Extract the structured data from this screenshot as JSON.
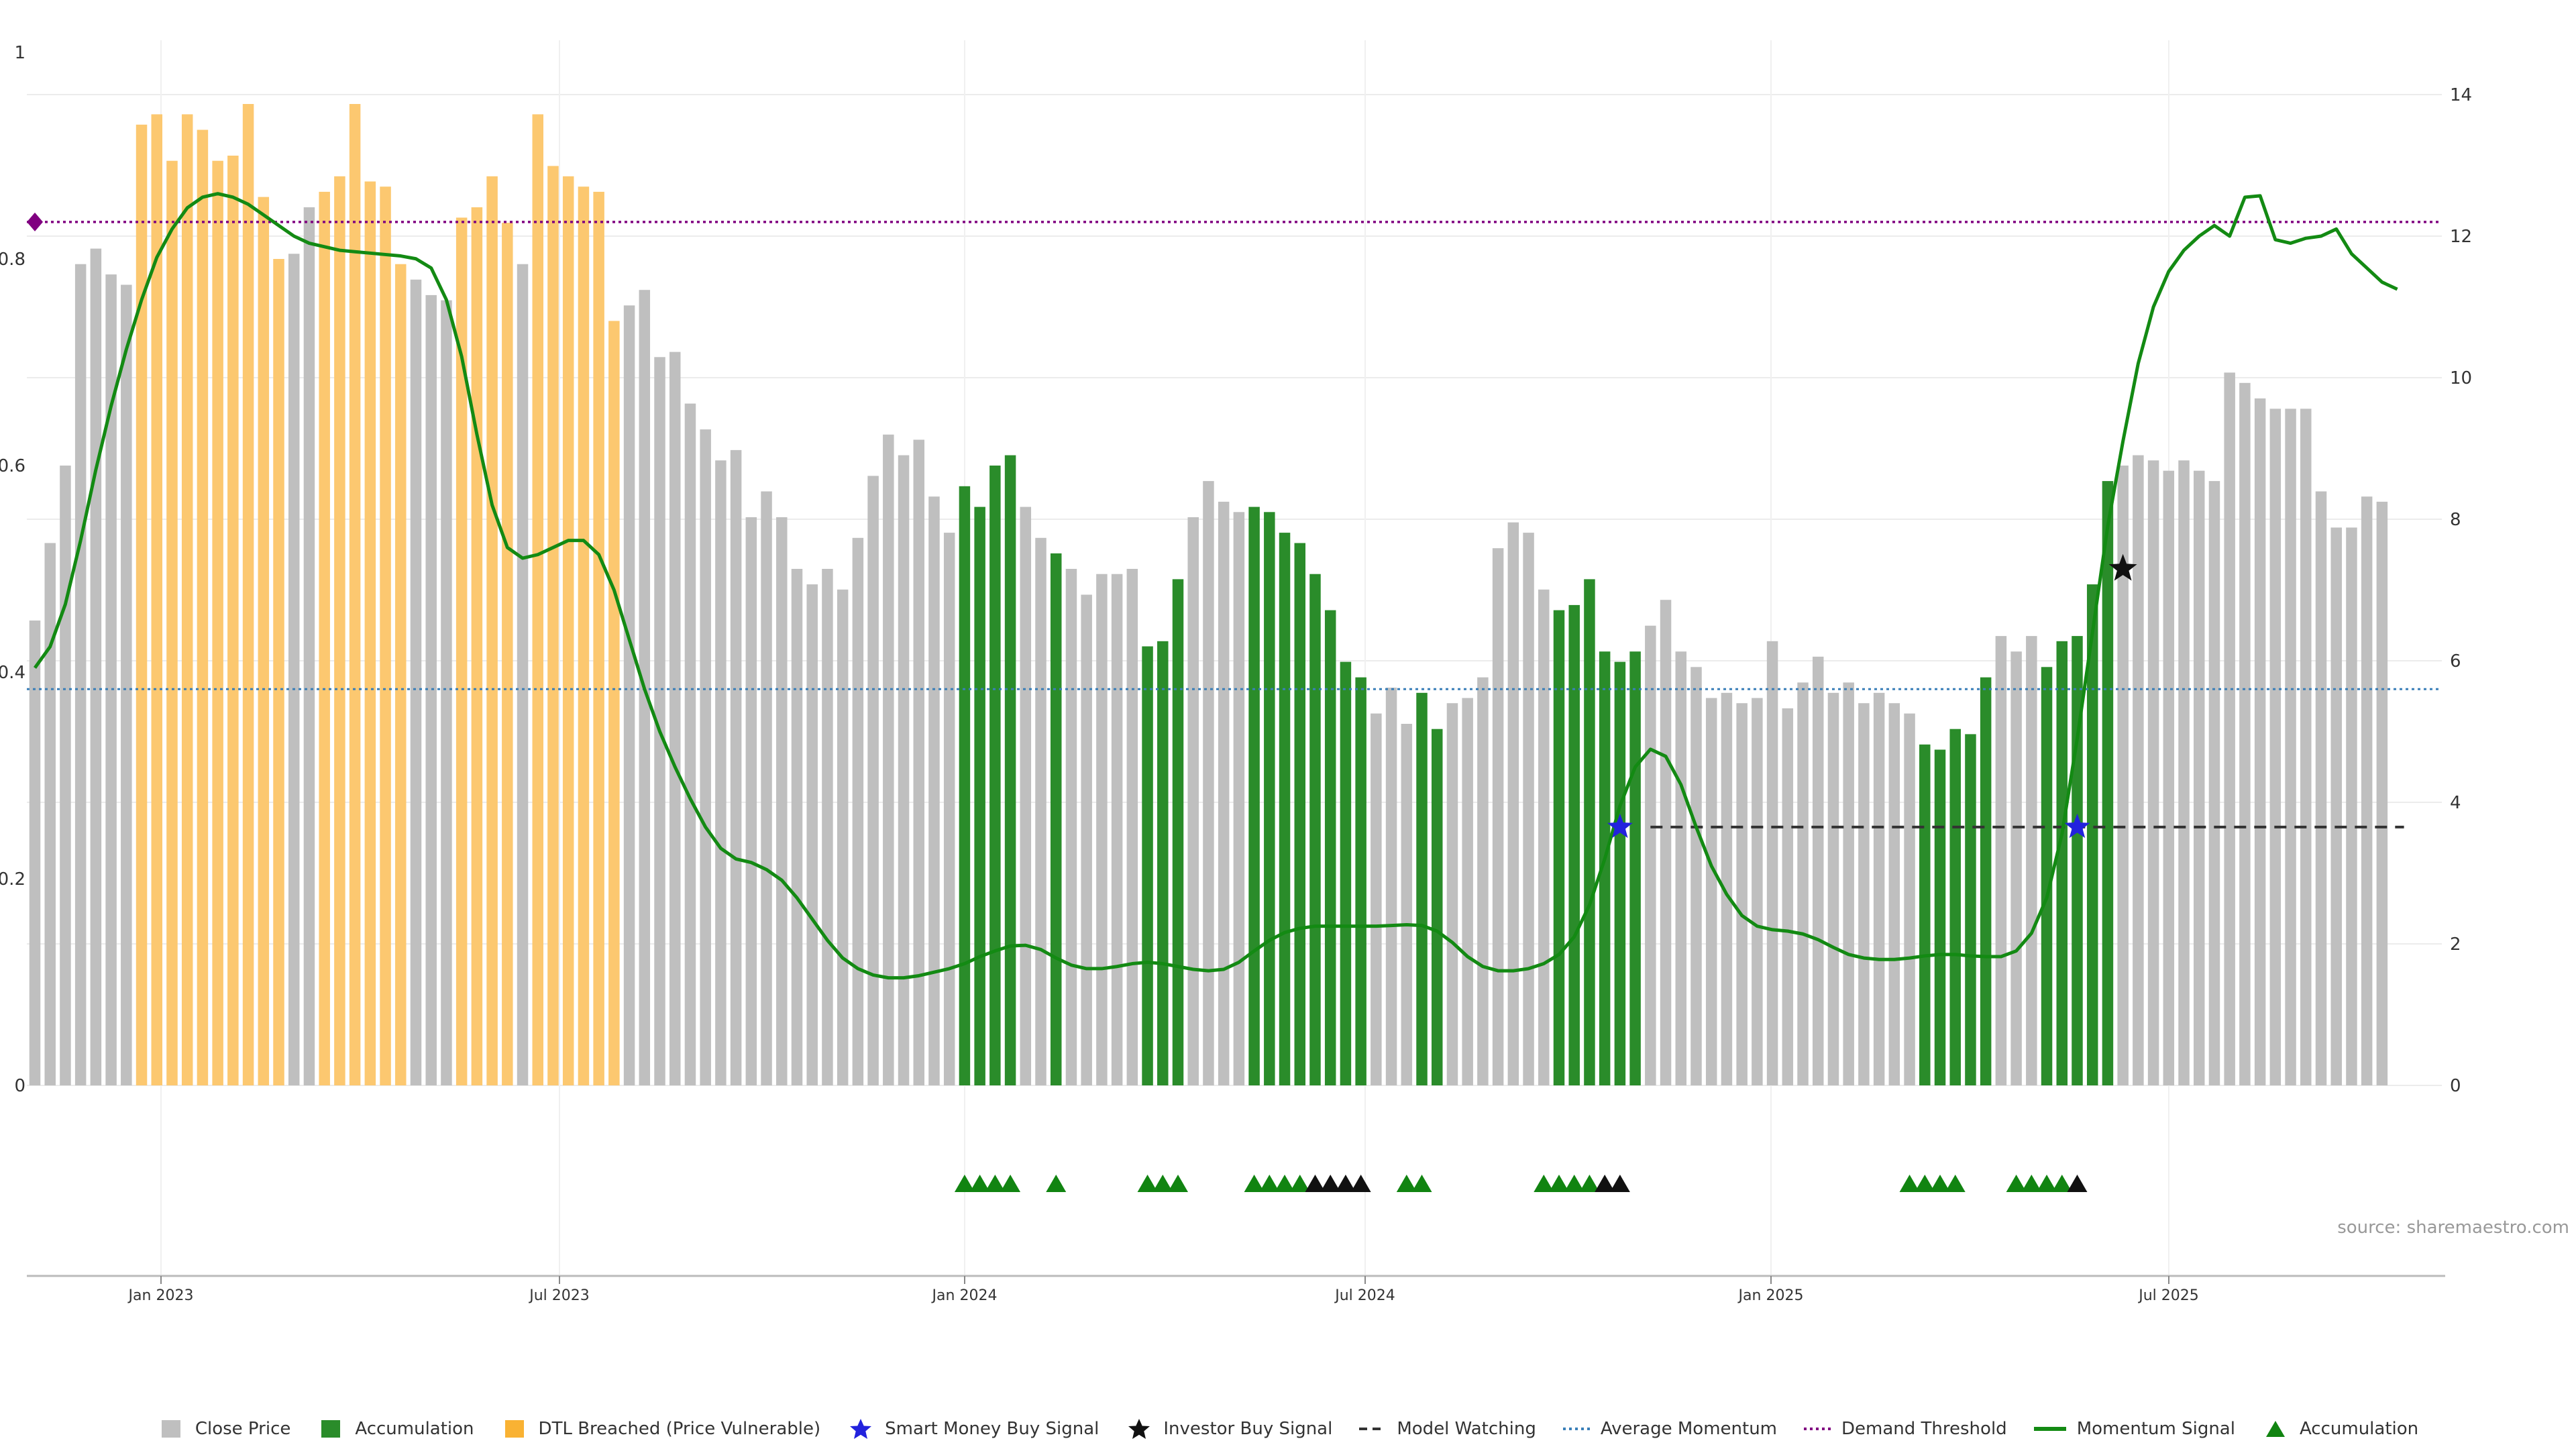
{
  "colors": {
    "close": "#bfbfbf",
    "accum": "#2a8c2a",
    "dtl": "#fcc870",
    "smart": "#2222dd",
    "investor": "#111111",
    "watching": "#333333",
    "avg": "#3a7fb8",
    "demand": "#800080",
    "momentum": "#138a13",
    "triangle": "#118411"
  },
  "chart_data": {
    "type": "bar",
    "x_ticks": [
      "Jan 2023",
      "Jul 2023",
      "Jan 2024",
      "Jul 2024",
      "Jan 2025",
      "Jul 2025"
    ],
    "y_left_ticks": [
      "0",
      "0.2",
      "0.4",
      "0.6",
      "0.8",
      "1"
    ],
    "y_right_ticks": [
      "0",
      "2",
      "4",
      "6",
      "8",
      "10",
      "12",
      "14"
    ],
    "y_left_range": [
      0,
      1
    ],
    "y_right_range": [
      0,
      14.6
    ],
    "source": "source: sharemaestro.com",
    "close_prices": [
      0.45,
      0.525,
      0.6,
      0.795,
      0.81,
      0.785,
      0.775,
      0.93,
      0.94,
      0.895,
      0.94,
      0.925,
      0.895,
      0.9,
      0.95,
      0.86,
      0.8,
      0.805,
      0.85,
      0.865,
      0.88,
      0.95,
      0.875,
      0.87,
      0.795,
      0.78,
      0.765,
      0.76,
      0.84,
      0.85,
      0.88,
      0.835,
      0.795,
      0.94,
      0.89,
      0.88,
      0.87,
      0.865,
      0.74,
      0.755,
      0.77,
      0.705,
      0.71,
      0.66,
      0.635,
      0.605,
      0.615,
      0.55,
      0.575,
      0.55,
      0.5,
      0.485,
      0.5,
      0.48,
      0.53,
      0.59,
      0.63,
      0.61,
      0.625,
      0.57,
      0.535,
      0.58,
      0.56,
      0.6,
      0.61,
      0.56,
      0.53,
      0.515,
      0.5,
      0.475,
      0.495,
      0.495,
      0.5,
      0.425,
      0.43,
      0.49,
      0.55,
      0.585,
      0.565,
      0.555,
      0.56,
      0.555,
      0.535,
      0.525,
      0.495,
      0.46,
      0.41,
      0.395,
      0.36,
      0.385,
      0.35,
      0.38,
      0.345,
      0.37,
      0.375,
      0.395,
      0.52,
      0.545,
      0.535,
      0.48,
      0.46,
      0.465,
      0.49,
      0.42,
      0.41,
      0.42,
      0.445,
      0.47,
      0.42,
      0.405,
      0.375,
      0.38,
      0.37,
      0.375,
      0.43,
      0.365,
      0.39,
      0.415,
      0.38,
      0.39,
      0.37,
      0.38,
      0.37,
      0.36,
      0.33,
      0.325,
      0.345,
      0.34,
      0.395,
      0.435,
      0.42,
      0.435,
      0.405,
      0.43,
      0.435,
      0.485,
      0.585,
      0.6,
      0.61,
      0.605,
      0.595,
      0.605,
      0.595,
      0.585,
      0.69,
      0.68,
      0.665,
      0.655,
      0.655,
      0.655,
      0.575,
      0.54,
      0.54,
      0.57,
      0.565
    ],
    "accumulation_bars": [
      61,
      62,
      63,
      64,
      67,
      73,
      74,
      75,
      80,
      81,
      82,
      83,
      84,
      85,
      86,
      87,
      91,
      92,
      100,
      101,
      102,
      103,
      104,
      105,
      124,
      125,
      126,
      127,
      128,
      132,
      133,
      134,
      135,
      136
    ],
    "dtl_bars": [
      7,
      8,
      9,
      10,
      11,
      12,
      13,
      14,
      15,
      16,
      19,
      20,
      21,
      22,
      23,
      24,
      28,
      29,
      30,
      31,
      33,
      34,
      35,
      36,
      37,
      38
    ],
    "momentum_signal": [
      [
        0,
        5.9
      ],
      [
        1,
        6.2
      ],
      [
        2,
        6.8
      ],
      [
        3,
        7.7
      ],
      [
        4,
        8.7
      ],
      [
        5,
        9.6
      ],
      [
        6,
        10.4
      ],
      [
        7,
        11.1
      ],
      [
        8,
        11.7
      ],
      [
        9,
        12.1
      ],
      [
        10,
        12.4
      ],
      [
        11,
        12.55
      ],
      [
        12,
        12.6
      ],
      [
        13,
        12.55
      ],
      [
        14,
        12.45
      ],
      [
        15,
        12.3
      ],
      [
        16,
        12.15
      ],
      [
        17,
        12.0
      ],
      [
        18,
        11.9
      ],
      [
        19,
        11.85
      ],
      [
        20,
        11.8
      ],
      [
        21,
        11.78
      ],
      [
        22,
        11.76
      ],
      [
        23,
        11.74
      ],
      [
        24,
        11.72
      ],
      [
        25,
        11.68
      ],
      [
        26,
        11.55
      ],
      [
        27,
        11.1
      ],
      [
        28,
        10.3
      ],
      [
        29,
        9.2
      ],
      [
        30,
        8.2
      ],
      [
        31,
        7.6
      ],
      [
        32,
        7.45
      ],
      [
        33,
        7.5
      ],
      [
        34,
        7.6
      ],
      [
        35,
        7.7
      ],
      [
        36,
        7.7
      ],
      [
        37,
        7.5
      ],
      [
        38,
        7.0
      ],
      [
        39,
        6.3
      ],
      [
        40,
        5.6
      ],
      [
        41,
        5.0
      ],
      [
        42,
        4.5
      ],
      [
        43,
        4.05
      ],
      [
        44,
        3.65
      ],
      [
        45,
        3.35
      ],
      [
        46,
        3.2
      ],
      [
        47,
        3.15
      ],
      [
        48,
        3.05
      ],
      [
        49,
        2.9
      ],
      [
        50,
        2.65
      ],
      [
        51,
        2.35
      ],
      [
        52,
        2.05
      ],
      [
        53,
        1.8
      ],
      [
        54,
        1.65
      ],
      [
        55,
        1.56
      ],
      [
        56,
        1.52
      ],
      [
        57,
        1.52
      ],
      [
        58,
        1.55
      ],
      [
        59,
        1.6
      ],
      [
        60,
        1.65
      ],
      [
        61,
        1.72
      ],
      [
        62,
        1.82
      ],
      [
        63,
        1.9
      ],
      [
        64,
        1.97
      ],
      [
        65,
        1.98
      ],
      [
        66,
        1.92
      ],
      [
        67,
        1.8
      ],
      [
        68,
        1.7
      ],
      [
        69,
        1.65
      ],
      [
        70,
        1.65
      ],
      [
        71,
        1.68
      ],
      [
        72,
        1.72
      ],
      [
        73,
        1.74
      ],
      [
        74,
        1.72
      ],
      [
        75,
        1.68
      ],
      [
        76,
        1.64
      ],
      [
        77,
        1.62
      ],
      [
        78,
        1.64
      ],
      [
        79,
        1.74
      ],
      [
        80,
        1.9
      ],
      [
        81,
        2.05
      ],
      [
        82,
        2.16
      ],
      [
        83,
        2.22
      ],
      [
        84,
        2.25
      ],
      [
        85,
        2.25
      ],
      [
        86,
        2.25
      ],
      [
        87,
        2.25
      ],
      [
        88,
        2.25
      ],
      [
        89,
        2.26
      ],
      [
        90,
        2.27
      ],
      [
        91,
        2.26
      ],
      [
        92,
        2.18
      ],
      [
        93,
        2.02
      ],
      [
        94,
        1.82
      ],
      [
        95,
        1.68
      ],
      [
        96,
        1.62
      ],
      [
        97,
        1.62
      ],
      [
        98,
        1.65
      ],
      [
        99,
        1.72
      ],
      [
        100,
        1.85
      ],
      [
        101,
        2.1
      ],
      [
        102,
        2.55
      ],
      [
        103,
        3.2
      ],
      [
        104,
        3.95
      ],
      [
        105,
        4.5
      ],
      [
        106,
        4.75
      ],
      [
        107,
        4.65
      ],
      [
        108,
        4.25
      ],
      [
        109,
        3.65
      ],
      [
        110,
        3.1
      ],
      [
        111,
        2.7
      ],
      [
        112,
        2.4
      ],
      [
        113,
        2.25
      ],
      [
        114,
        2.2
      ],
      [
        115,
        2.18
      ],
      [
        116,
        2.14
      ],
      [
        117,
        2.06
      ],
      [
        118,
        1.95
      ],
      [
        119,
        1.85
      ],
      [
        120,
        1.8
      ],
      [
        121,
        1.78
      ],
      [
        122,
        1.78
      ],
      [
        123,
        1.8
      ],
      [
        124,
        1.83
      ],
      [
        125,
        1.85
      ],
      [
        126,
        1.85
      ],
      [
        127,
        1.83
      ],
      [
        128,
        1.82
      ],
      [
        129,
        1.82
      ],
      [
        130,
        1.9
      ],
      [
        131,
        2.15
      ],
      [
        132,
        2.65
      ],
      [
        133,
        3.55
      ],
      [
        134,
        4.9
      ],
      [
        135,
        6.4
      ],
      [
        136,
        7.9
      ],
      [
        137,
        9.1
      ],
      [
        138,
        10.2
      ],
      [
        139,
        11.0
      ],
      [
        140,
        11.5
      ],
      [
        141,
        11.8
      ],
      [
        142,
        12.0
      ],
      [
        143,
        12.15
      ],
      [
        144,
        12.0
      ],
      [
        145,
        12.55
      ],
      [
        146,
        12.57
      ],
      [
        147,
        11.95
      ],
      [
        148,
        11.9
      ],
      [
        149,
        11.97
      ],
      [
        150,
        12.0
      ],
      [
        151,
        12.1
      ],
      [
        152,
        11.75
      ],
      [
        153,
        11.55
      ],
      [
        154,
        11.35
      ],
      [
        155,
        11.25
      ]
    ],
    "average_momentum": 5.6,
    "demand_threshold": 12.2,
    "model_watching_level": 3.65,
    "model_watching_range": [
      106,
      155
    ],
    "smart_money_buy_signals": [
      [
        104,
        3.65
      ],
      [
        134,
        3.65
      ]
    ],
    "investor_buy_signal": [
      [
        137,
        7.3
      ]
    ],
    "demand_marker": [
      [
        0,
        12.2
      ]
    ],
    "accumulation_triangles": [
      {
        "i": 61,
        "c": "g"
      },
      {
        "i": 62,
        "c": "g"
      },
      {
        "i": 63,
        "c": "g"
      },
      {
        "i": 64,
        "c": "g"
      },
      {
        "i": 67,
        "c": "g"
      },
      {
        "i": 73,
        "c": "g"
      },
      {
        "i": 74,
        "c": "g"
      },
      {
        "i": 75,
        "c": "g"
      },
      {
        "i": 80,
        "c": "g"
      },
      {
        "i": 81,
        "c": "g"
      },
      {
        "i": 82,
        "c": "g"
      },
      {
        "i": 83,
        "c": "g"
      },
      {
        "i": 84,
        "c": "k"
      },
      {
        "i": 85,
        "c": "k"
      },
      {
        "i": 86,
        "c": "k"
      },
      {
        "i": 87,
        "c": "k"
      },
      {
        "i": 90,
        "c": "g"
      },
      {
        "i": 91,
        "c": "g"
      },
      {
        "i": 99,
        "c": "g"
      },
      {
        "i": 100,
        "c": "g"
      },
      {
        "i": 101,
        "c": "g"
      },
      {
        "i": 102,
        "c": "g"
      },
      {
        "i": 103,
        "c": "k"
      },
      {
        "i": 104,
        "c": "k"
      },
      {
        "i": 123,
        "c": "g"
      },
      {
        "i": 124,
        "c": "g"
      },
      {
        "i": 125,
        "c": "g"
      },
      {
        "i": 126,
        "c": "g"
      },
      {
        "i": 130,
        "c": "g"
      },
      {
        "i": 131,
        "c": "g"
      },
      {
        "i": 132,
        "c": "g"
      },
      {
        "i": 133,
        "c": "g"
      },
      {
        "i": 134,
        "c": "k"
      }
    ]
  },
  "legend": [
    {
      "key": "close",
      "label": "Close Price"
    },
    {
      "key": "accum",
      "label": "Accumulation"
    },
    {
      "key": "dtl",
      "label": "DTL Breached (Price Vulnerable)"
    },
    {
      "key": "smart",
      "label": "Smart Money Buy Signal"
    },
    {
      "key": "investor",
      "label": "Investor Buy Signal"
    },
    {
      "key": "watching",
      "label": "Model Watching"
    },
    {
      "key": "avg",
      "label": "Average Momentum"
    },
    {
      "key": "demand",
      "label": "Demand Threshold"
    },
    {
      "key": "momentum",
      "label": "Momentum Signal"
    },
    {
      "key": "triangle",
      "label": "Accumulation"
    }
  ]
}
